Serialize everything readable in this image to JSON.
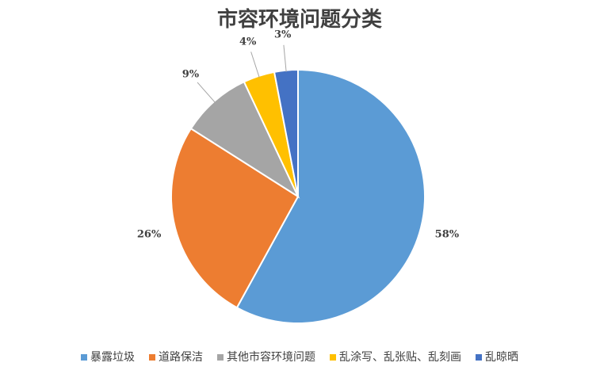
{
  "chart_data": {
    "type": "pie",
    "title": "市容环境问题分类",
    "categories": [
      "暴露垃圾",
      "道路保洁",
      "其他市容环境问题",
      "乱涂写、乱张贴、乱刻画",
      "乱晾晒"
    ],
    "values": [
      58,
      26,
      9,
      4,
      3
    ],
    "value_labels": [
      "58%",
      "26%",
      "9%",
      "4%",
      "3%"
    ],
    "colors": [
      "#5b9bd5",
      "#ed7d31",
      "#a5a5a5",
      "#ffc000",
      "#4472c4"
    ],
    "legend": "bottom"
  }
}
